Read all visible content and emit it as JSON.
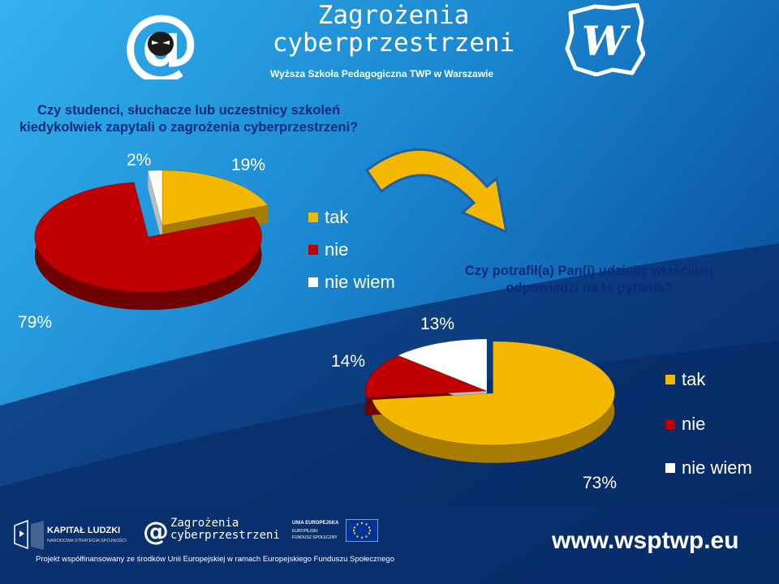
{
  "header": {
    "title_line1": "Zagrożenia",
    "title_line2": "cyberprzestrzeni",
    "subtitle": "Wyższa Szkoła Pedagogiczna TWP w Warszawie",
    "logo_text": "W"
  },
  "colors": {
    "tak": "#F5B800",
    "nie": "#C00000",
    "nie_wiem": "#FFFFFF",
    "background": "#1070B8"
  },
  "chart_data": [
    {
      "type": "pie",
      "title": "Czy studenci, słuchacze lub uczestnicy szkoleń kiedykolwiek zapytali o zagrożenia cyberprzestrzeni?",
      "title_line1": "Czy studenci, słuchacze lub uczestnicy szkoleń",
      "title_line2": "kiedykolwiek zapytali o zagrożenia cyberprzestrzeni?",
      "categories": [
        "tak",
        "nie",
        "nie wiem"
      ],
      "values": [
        19,
        79,
        2
      ],
      "labels": [
        "19%",
        "79%",
        "2%"
      ],
      "legend": [
        "tak",
        "nie",
        "nie wiem"
      ],
      "exploded": [
        "nie"
      ],
      "style": "3d"
    },
    {
      "type": "pie",
      "title": "Czy potrafił(a) Pan(i) udzielić właściwej odpowiedzi na te pytania?",
      "title_line1": "Czy potrafił(a) Pan(i) udzielić właściwej",
      "title_line2": "odpowiedzi na te pytania?",
      "categories": [
        "tak",
        "nie",
        "nie wiem"
      ],
      "values": [
        73,
        14,
        13
      ],
      "labels": [
        "73%",
        "14%",
        "13%"
      ],
      "legend": [
        "tak",
        "nie",
        "nie wiem"
      ],
      "exploded": [
        "tak"
      ],
      "style": "3d"
    }
  ],
  "footer": {
    "kl_title": "KAPITAŁ LUDZKI",
    "kl_sub": "NARODOWA STRATEGIA SPÓJNOŚCI",
    "zc_line1": "Zagrożenia",
    "zc_line2": "cyberprzestrzeni",
    "eu_line1": "UNIA EUROPEJSKA",
    "eu_line2": "EUROPEJSKI",
    "eu_line3": "FUNDUSZ SPOŁECZNY",
    "note": "Projekt współfinansowany ze środków Unii Europejskiej w ramach Europejskiego Funduszu Społecznego",
    "url": "www.wsptwp.eu"
  }
}
